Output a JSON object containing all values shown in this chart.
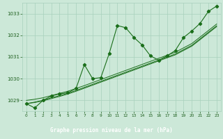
{
  "xlabel": "Graphe pression niveau de la mer (hPa)",
  "hours": [
    0,
    1,
    2,
    3,
    4,
    5,
    6,
    7,
    8,
    9,
    10,
    11,
    12,
    13,
    14,
    15,
    16,
    17,
    18,
    19,
    20,
    21,
    22,
    23
  ],
  "main_values": [
    1028.85,
    1028.65,
    1029.0,
    1029.2,
    1029.3,
    1029.35,
    1029.55,
    1030.65,
    1030.0,
    1030.05,
    1031.15,
    1032.45,
    1032.35,
    1031.9,
    1031.55,
    1031.05,
    1030.85,
    1031.05,
    1031.3,
    1031.9,
    1032.2,
    1032.55,
    1033.1,
    1033.35
  ],
  "line2_values": [
    1029.0,
    1029.05,
    1029.12,
    1029.22,
    1029.32,
    1029.42,
    1029.55,
    1029.68,
    1029.82,
    1029.96,
    1030.1,
    1030.24,
    1030.38,
    1030.52,
    1030.66,
    1030.8,
    1030.94,
    1031.08,
    1031.22,
    1031.42,
    1031.62,
    1031.92,
    1032.22,
    1032.52
  ],
  "line3_values": [
    1028.85,
    1028.92,
    1029.0,
    1029.12,
    1029.22,
    1029.33,
    1029.46,
    1029.6,
    1029.74,
    1029.88,
    1030.02,
    1030.16,
    1030.3,
    1030.44,
    1030.58,
    1030.72,
    1030.86,
    1031.0,
    1031.14,
    1031.34,
    1031.54,
    1031.84,
    1032.14,
    1032.44
  ],
  "line4_values": [
    1028.85,
    1028.9,
    1028.98,
    1029.08,
    1029.18,
    1029.29,
    1029.42,
    1029.56,
    1029.7,
    1029.84,
    1029.98,
    1030.12,
    1030.26,
    1030.4,
    1030.54,
    1030.68,
    1030.82,
    1030.96,
    1031.1,
    1031.3,
    1031.5,
    1031.8,
    1032.1,
    1032.4
  ],
  "ylim": [
    1028.5,
    1033.5
  ],
  "xlim": [
    -0.5,
    23.5
  ],
  "yticks": [
    1029,
    1030,
    1031,
    1032,
    1033
  ],
  "xticks": [
    0,
    1,
    2,
    3,
    4,
    5,
    6,
    7,
    8,
    9,
    10,
    11,
    12,
    13,
    14,
    15,
    16,
    17,
    18,
    19,
    20,
    21,
    22,
    23
  ],
  "line_color": "#1a6e1a",
  "bg_color": "#cce8d8",
  "grid_color": "#a8d0bc",
  "text_color": "#1a5c1a",
  "label_bg": "#2d6e2d",
  "label_fg": "#ffffff"
}
